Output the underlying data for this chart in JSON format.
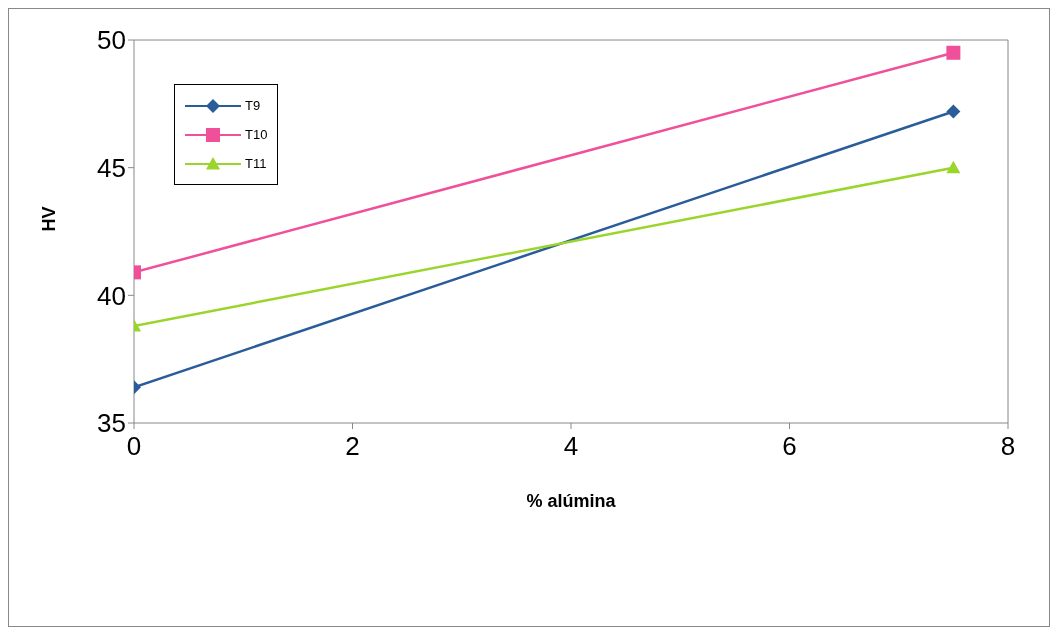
{
  "chart_data": {
    "type": "line",
    "xlabel": "% alúmina",
    "ylabel": "HV",
    "xlim": [
      0,
      8
    ],
    "xticks": [
      0,
      2,
      4,
      6,
      8
    ],
    "ylim": [
      35,
      50
    ],
    "yticks": [
      35,
      40,
      45,
      50
    ],
    "grid": false,
    "legend": "top left",
    "x": [
      0,
      7.5
    ],
    "series": [
      {
        "name": "T9",
        "color": "#2a5c9a",
        "marker": "diamond",
        "values": [
          36.4,
          47.2
        ]
      },
      {
        "name": "T10",
        "color": "#f0509a",
        "marker": "square",
        "values": [
          40.9,
          49.5
        ]
      },
      {
        "name": "T11",
        "color": "#99d52a",
        "marker": "triangle",
        "values": [
          38.8,
          45.0
        ]
      }
    ]
  }
}
